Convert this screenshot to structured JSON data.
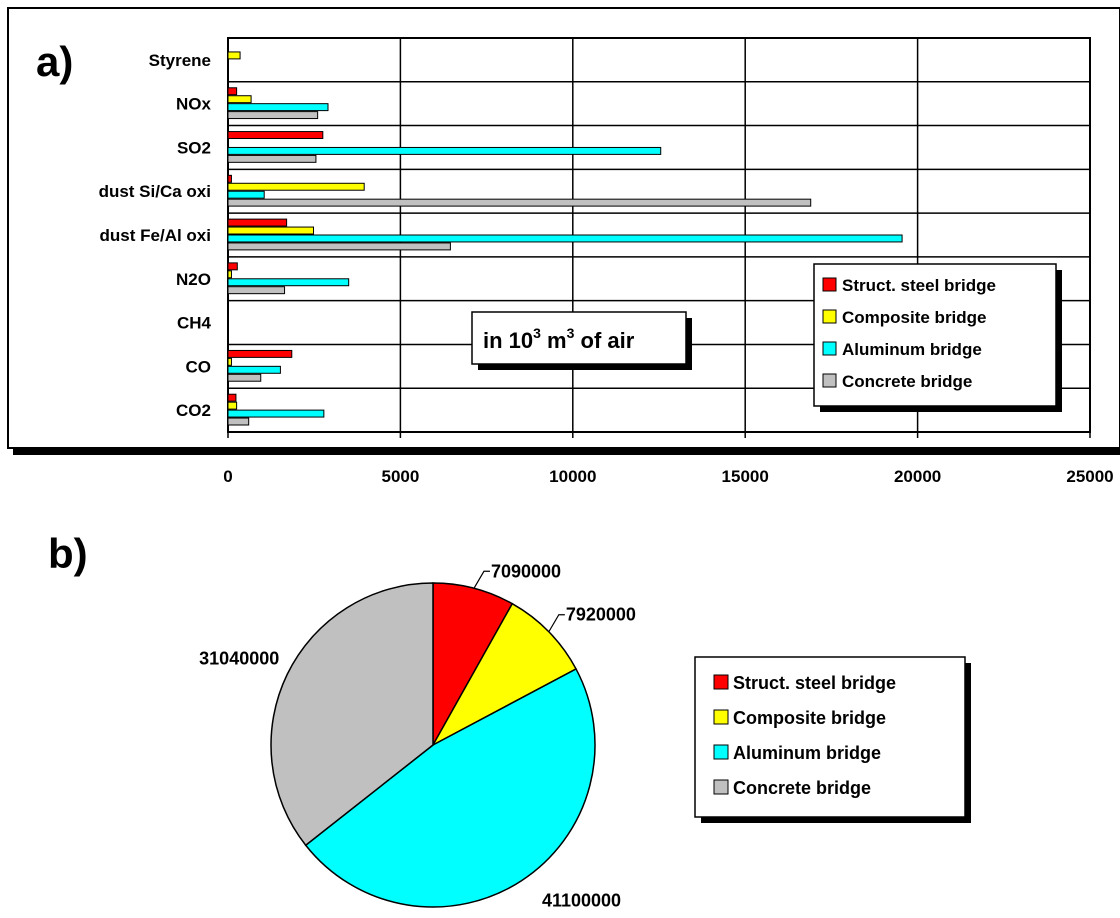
{
  "colors": {
    "steel": "#ff0000",
    "composite": "#ffff00",
    "aluminum": "#00ffff",
    "concrete": "#c0c0c0"
  },
  "chart_data": [
    {
      "type": "bar",
      "orientation": "horizontal",
      "panel_label": "a)",
      "annotation": {
        "prefix": "in 10",
        "exp1": "3",
        "mid": " m",
        "exp2": "3",
        "suffix": " of air"
      },
      "categories": [
        "Styrene",
        "NOx",
        "SO2",
        "dust Si/Ca oxi",
        "dust Fe/Al oxi",
        "N2O",
        "CH4",
        "CO",
        "CO2"
      ],
      "series": [
        {
          "name": "Struct. steel bridge",
          "color": "#ff0000",
          "values": [
            0,
            250,
            2750,
            100,
            1700,
            270,
            0,
            1850,
            230
          ]
        },
        {
          "name": "Composite bridge",
          "color": "#ffff00",
          "values": [
            350,
            670,
            0,
            3950,
            2480,
            100,
            0,
            100,
            250
          ]
        },
        {
          "name": "Aluminum bridge",
          "color": "#00ffff",
          "values": [
            0,
            2900,
            12550,
            1050,
            19550,
            3500,
            0,
            1520,
            2780
          ]
        },
        {
          "name": "Concrete bridge",
          "color": "#c0c0c0",
          "values": [
            0,
            2600,
            2550,
            16900,
            6450,
            1640,
            0,
            950,
            600
          ]
        }
      ],
      "xticks": [
        "0",
        "5000",
        "10000",
        "15000",
        "20000",
        "25000"
      ],
      "xlim": [
        0,
        25000
      ],
      "grid": true,
      "legend_position": "right"
    },
    {
      "type": "pie",
      "panel_label": "b)",
      "slices": [
        {
          "name": "Struct. steel bridge",
          "value": 7090000,
          "label": "7090000",
          "color": "#ff0000"
        },
        {
          "name": "Composite bridge",
          "value": 7920000,
          "label": "7920000",
          "color": "#ffff00"
        },
        {
          "name": "Aluminum bridge",
          "value": 41100000,
          "label": "41100000",
          "color": "#00ffff"
        },
        {
          "name": "Concrete bridge",
          "value": 31040000,
          "label": "31040000",
          "color": "#c0c0c0"
        }
      ],
      "legend_position": "right"
    }
  ]
}
